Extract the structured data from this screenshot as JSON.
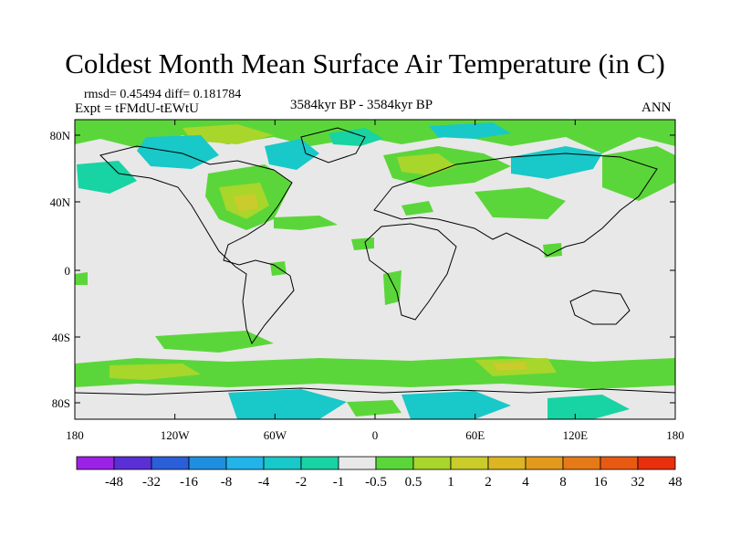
{
  "title": "Coldest Month Mean Surface Air Temperature (in C)",
  "stats_line": "rmsd= 0.45494 diff= 0.181784",
  "experiment_line": "Expt = tFMdU-tEWtU",
  "period_line": "3584kyr BP - 3584kyr BP",
  "season_label": "ANN",
  "axes": {
    "lat_ticks": [
      "80N",
      "40N",
      "0",
      "40S",
      "80S"
    ],
    "lon_ticks": [
      "180",
      "120W",
      "60W",
      "0",
      "60E",
      "120E",
      "180"
    ]
  },
  "map_background": "#e8e8e8",
  "colorbar": {
    "colors": [
      "#9b22e6",
      "#5a2fd6",
      "#2a5fd9",
      "#1e8fe0",
      "#22b4e8",
      "#19c8c8",
      "#18d3a3",
      "#e8e8e8",
      "#5bd63a",
      "#a8d62a",
      "#c9cc2a",
      "#dcb522",
      "#e39a1c",
      "#e67a16",
      "#e85a12",
      "#e8300e"
    ],
    "labels": [
      "-48",
      "-32",
      "-16",
      "-8",
      "-4",
      "-2",
      "-1",
      "-0.5",
      "0.5",
      "1",
      "2",
      "4",
      "8",
      "16",
      "32",
      "48"
    ]
  }
}
